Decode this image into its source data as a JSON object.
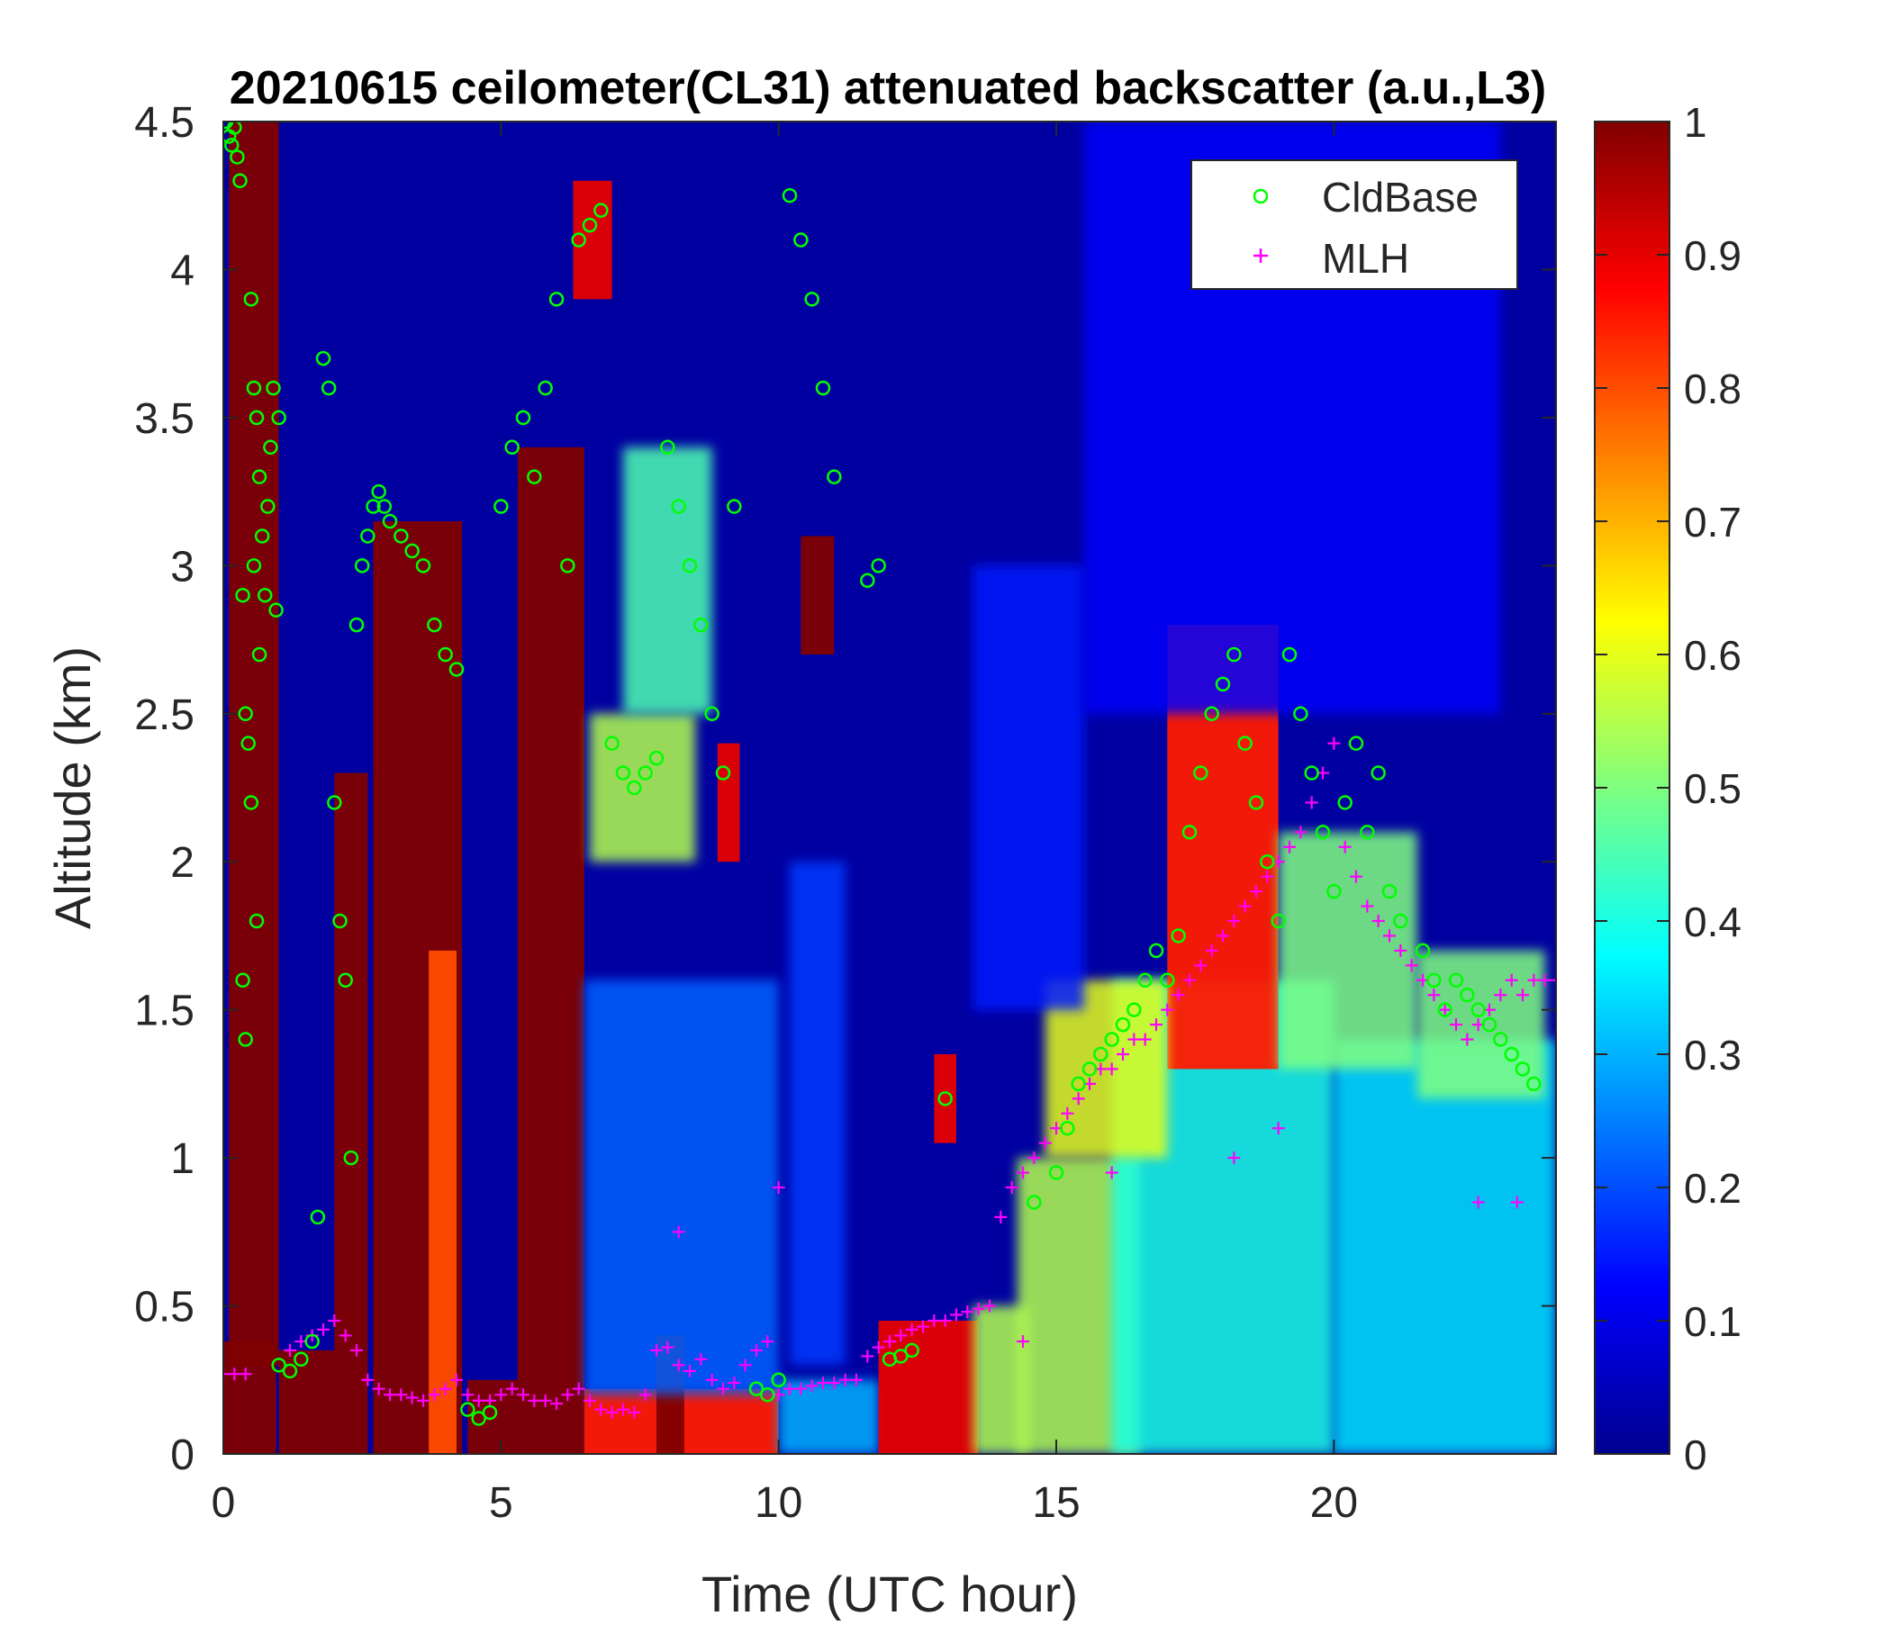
{
  "chart_data": {
    "type": "heatmap",
    "title": "20210615 ceilometer(CL31) attenuated backscatter (a.u.,L3)",
    "xlabel": "Time (UTC hour)",
    "ylabel": "Altitude (km)",
    "xlim": [
      0,
      24
    ],
    "ylim": [
      0,
      4.5
    ],
    "x_ticks": [
      "0",
      "5",
      "10",
      "15",
      "20"
    ],
    "x_tick_values": [
      0,
      5,
      10,
      15,
      20
    ],
    "y_ticks": [
      "0",
      "0.5",
      "1",
      "1.5",
      "2",
      "2.5",
      "3",
      "3.5",
      "4",
      "4.5"
    ],
    "y_tick_values": [
      0,
      0.5,
      1,
      1.5,
      2,
      2.5,
      3,
      3.5,
      4,
      4.5
    ],
    "colorbar": {
      "colormap": "jet",
      "clim": [
        0,
        1
      ],
      "ticks": [
        "0",
        "0.1",
        "0.2",
        "0.3",
        "0.4",
        "0.5",
        "0.6",
        "0.7",
        "0.8",
        "0.9",
        "1"
      ],
      "tick_values": [
        0,
        0.1,
        0.2,
        0.3,
        0.4,
        0.5,
        0.6,
        0.7,
        0.8,
        0.9,
        1
      ]
    },
    "background_value": 0.02,
    "grid": false,
    "legend": {
      "placement": "top-right",
      "entries": [
        {
          "label": "CldBase",
          "marker": "circle",
          "color": "#00ff00"
        },
        {
          "label": "MLH",
          "marker": "plus",
          "color": "#ff00ff"
        }
      ]
    },
    "features": [
      {
        "x": [
          0,
          0.95
        ],
        "y": [
          0,
          0.38
        ],
        "value": 1.0
      },
      {
        "x": [
          0.1,
          1.0
        ],
        "y": [
          0.3,
          4.5
        ],
        "value": 1.0
      },
      {
        "x": [
          1.0,
          2.0
        ],
        "y": [
          0,
          0.35
        ],
        "value": 1.0
      },
      {
        "x": [
          2.0,
          2.6
        ],
        "y": [
          0,
          2.3
        ],
        "value": 1.0
      },
      {
        "x": [
          2.7,
          4.3
        ],
        "y": [
          0,
          3.15
        ],
        "value": 1.0
      },
      {
        "x": [
          3.7,
          4.2
        ],
        "y": [
          0,
          1.7
        ],
        "value": 0.8
      },
      {
        "x": [
          4.4,
          5.3
        ],
        "y": [
          0,
          0.25
        ],
        "value": 1.0
      },
      {
        "x": [
          5.3,
          6.5
        ],
        "y": [
          0,
          3.4
        ],
        "value": 1.0
      },
      {
        "x": [
          6.5,
          10.0
        ],
        "y": [
          0,
          0.22
        ],
        "value": 0.85
      },
      {
        "x": [
          7.8,
          8.3
        ],
        "y": [
          0,
          0.4
        ],
        "value": 1.0
      },
      {
        "x": [
          6.6,
          8.5
        ],
        "y": [
          2.0,
          2.5
        ],
        "value": 0.55
      },
      {
        "x": [
          6.5,
          10.0
        ],
        "y": [
          0.2,
          1.6
        ],
        "value": 0.22
      },
      {
        "x": [
          7.2,
          8.8
        ],
        "y": [
          2.5,
          3.4
        ],
        "value": 0.45
      },
      {
        "x": [
          6.3,
          7.0
        ],
        "y": [
          3.9,
          4.3
        ],
        "value": 0.9
      },
      {
        "x": [
          8.9,
          9.3
        ],
        "y": [
          2.0,
          2.4
        ],
        "value": 0.9
      },
      {
        "x": [
          10.4,
          11.0
        ],
        "y": [
          2.7,
          3.1
        ],
        "value": 1.0
      },
      {
        "x": [
          10.0,
          11.8
        ],
        "y": [
          0,
          0.25
        ],
        "value": 0.3
      },
      {
        "x": [
          11.8,
          13.6
        ],
        "y": [
          0,
          0.45
        ],
        "value": 0.9
      },
      {
        "x": [
          13.5,
          14.5
        ],
        "y": [
          0,
          0.5
        ],
        "value": 0.55
      },
      {
        "x": [
          14.3,
          16.5
        ],
        "y": [
          0,
          1.0
        ],
        "value": 0.55
      },
      {
        "x": [
          16.0,
          20.0
        ],
        "y": [
          0,
          1.6
        ],
        "value": 0.4
      },
      {
        "x": [
          20.0,
          24.0
        ],
        "y": [
          0,
          1.4
        ],
        "value": 0.35
      },
      {
        "x": [
          12.8,
          13.2
        ],
        "y": [
          1.05,
          1.35
        ],
        "value": 0.9
      },
      {
        "x": [
          10.2,
          11.2
        ],
        "y": [
          0.3,
          2.0
        ],
        "value": 0.18
      },
      {
        "x": [
          17.0,
          19.0
        ],
        "y": [
          1.3,
          2.8
        ],
        "value": 0.85
      },
      {
        "x": [
          19.0,
          21.5
        ],
        "y": [
          1.3,
          2.1
        ],
        "value": 0.5
      },
      {
        "x": [
          21.5,
          23.8
        ],
        "y": [
          1.2,
          1.7
        ],
        "value": 0.5
      },
      {
        "x": [
          14.8,
          17.0
        ],
        "y": [
          1.0,
          1.6
        ],
        "value": 0.6
      },
      {
        "x": [
          13.5,
          15.5
        ],
        "y": [
          1.5,
          3.0
        ],
        "value": 0.15
      },
      {
        "x": [
          15.5,
          23.0
        ],
        "y": [
          2.5,
          4.5
        ],
        "value": 0.12
      }
    ],
    "series": [
      {
        "name": "CldBase",
        "x": [
          0.05,
          0.1,
          0.15,
          0.2,
          0.25,
          0.3,
          0.35,
          0.4,
          0.5,
          0.55,
          0.6,
          0.65,
          0.7,
          0.75,
          0.8,
          0.85,
          0.9,
          0.95,
          1.0,
          0.4,
          0.5,
          0.6,
          0.45,
          0.55,
          0.35,
          0.65,
          1.0,
          1.2,
          1.4,
          1.6,
          1.7,
          1.8,
          1.9,
          2.0,
          2.1,
          2.2,
          2.3,
          2.4,
          2.5,
          2.6,
          2.7,
          2.8,
          2.9,
          3.0,
          3.2,
          3.4,
          3.6,
          3.8,
          4.0,
          4.2,
          4.4,
          4.6,
          4.8,
          5.0,
          5.2,
          5.4,
          5.6,
          5.8,
          6.0,
          6.2,
          6.4,
          6.6,
          6.8,
          7.0,
          7.2,
          7.4,
          7.6,
          7.8,
          8.0,
          8.2,
          8.4,
          8.6,
          8.8,
          9.0,
          9.2,
          9.6,
          9.8,
          10.0,
          10.2,
          10.4,
          10.6,
          10.8,
          11.0,
          11.6,
          11.8,
          12.0,
          12.2,
          12.4,
          13.0,
          14.6,
          15.0,
          15.2,
          15.4,
          15.6,
          15.8,
          16.0,
          16.2,
          16.4,
          16.6,
          16.8,
          17.0,
          17.2,
          17.4,
          17.6,
          17.8,
          18.0,
          18.2,
          18.4,
          18.6,
          18.8,
          19.0,
          19.2,
          19.4,
          19.6,
          19.8,
          20.0,
          20.2,
          20.4,
          20.6,
          20.8,
          21.0,
          21.2,
          21.6,
          21.8,
          22.0,
          22.2,
          22.4,
          22.6,
          22.8,
          23.0,
          23.2,
          23.4,
          23.6
        ],
        "y": [
          4.5,
          4.45,
          4.42,
          4.48,
          4.38,
          4.3,
          2.9,
          2.5,
          3.9,
          3.6,
          3.5,
          3.3,
          3.1,
          2.9,
          3.2,
          3.4,
          3.6,
          2.85,
          3.5,
          1.4,
          2.2,
          1.8,
          2.4,
          3.0,
          1.6,
          2.7,
          0.3,
          0.28,
          0.32,
          0.38,
          0.8,
          3.7,
          3.6,
          2.2,
          1.8,
          1.6,
          1.0,
          2.8,
          3.0,
          3.1,
          3.2,
          3.25,
          3.2,
          3.15,
          3.1,
          3.05,
          3.0,
          2.8,
          2.7,
          2.65,
          0.15,
          0.12,
          0.14,
          3.2,
          3.4,
          3.5,
          3.3,
          3.6,
          3.9,
          3.0,
          4.1,
          4.15,
          4.2,
          2.4,
          2.3,
          2.25,
          2.3,
          2.35,
          3.4,
          3.2,
          3.0,
          2.8,
          2.5,
          2.3,
          3.2,
          0.22,
          0.2,
          0.25,
          4.25,
          4.1,
          3.9,
          3.6,
          3.3,
          2.95,
          3.0,
          0.32,
          0.33,
          0.35,
          1.2,
          0.85,
          0.95,
          1.1,
          1.25,
          1.3,
          1.35,
          1.4,
          1.45,
          1.5,
          1.6,
          1.7,
          1.6,
          1.75,
          2.1,
          2.3,
          2.5,
          2.6,
          2.7,
          2.4,
          2.2,
          2.0,
          1.8,
          2.7,
          2.5,
          2.3,
          2.1,
          1.9,
          2.2,
          2.4,
          2.1,
          2.3,
          1.9,
          1.8,
          1.7,
          1.6,
          1.5,
          1.6,
          1.55,
          1.5,
          1.45,
          1.4,
          1.35,
          1.3,
          1.25
        ]
      },
      {
        "name": "MLH",
        "x": [
          0.0,
          0.2,
          0.4,
          1.2,
          1.4,
          1.6,
          1.8,
          2.0,
          2.2,
          2.4,
          2.6,
          2.8,
          3.0,
          3.2,
          3.4,
          3.6,
          3.8,
          4.0,
          4.2,
          4.4,
          4.6,
          4.8,
          5.0,
          5.2,
          5.4,
          5.6,
          5.8,
          6.0,
          6.2,
          6.4,
          6.6,
          6.8,
          7.0,
          7.2,
          7.4,
          7.6,
          7.8,
          8.0,
          8.2,
          8.4,
          8.6,
          8.8,
          9.0,
          9.2,
          9.4,
          9.6,
          9.8,
          10.0,
          10.2,
          10.4,
          10.6,
          10.8,
          11.0,
          11.2,
          11.4,
          11.6,
          11.8,
          12.0,
          12.2,
          12.4,
          12.6,
          12.8,
          13.0,
          13.2,
          13.4,
          13.6,
          13.8,
          14.0,
          14.2,
          14.4,
          14.6,
          14.8,
          15.0,
          15.2,
          15.4,
          15.6,
          15.8,
          16.0,
          16.2,
          16.4,
          16.6,
          16.8,
          17.0,
          17.2,
          17.4,
          17.6,
          17.8,
          18.0,
          18.2,
          18.4,
          18.6,
          18.8,
          19.0,
          19.2,
          19.4,
          19.6,
          19.8,
          20.0,
          20.2,
          20.4,
          20.6,
          20.8,
          21.0,
          21.2,
          21.4,
          21.6,
          21.8,
          22.0,
          22.2,
          22.4,
          22.6,
          22.8,
          23.0,
          23.2,
          23.4,
          23.6,
          23.8,
          24.0,
          8.2,
          10.0,
          14.4,
          16.0,
          18.2,
          19.0,
          22.6,
          23.3
        ],
        "y": [
          0.27,
          0.27,
          0.27,
          0.35,
          0.38,
          0.4,
          0.42,
          0.45,
          0.4,
          0.35,
          0.25,
          0.22,
          0.2,
          0.2,
          0.19,
          0.18,
          0.2,
          0.22,
          0.25,
          0.2,
          0.18,
          0.18,
          0.2,
          0.22,
          0.2,
          0.18,
          0.18,
          0.17,
          0.2,
          0.22,
          0.18,
          0.15,
          0.14,
          0.15,
          0.14,
          0.2,
          0.35,
          0.36,
          0.3,
          0.28,
          0.32,
          0.25,
          0.22,
          0.24,
          0.3,
          0.35,
          0.38,
          0.2,
          0.22,
          0.22,
          0.23,
          0.24,
          0.24,
          0.25,
          0.25,
          0.33,
          0.36,
          0.38,
          0.4,
          0.42,
          0.43,
          0.45,
          0.45,
          0.47,
          0.48,
          0.49,
          0.5,
          0.8,
          0.9,
          0.95,
          1.0,
          1.05,
          1.1,
          1.15,
          1.2,
          1.25,
          1.3,
          1.3,
          1.35,
          1.4,
          1.4,
          1.45,
          1.5,
          1.55,
          1.6,
          1.65,
          1.7,
          1.75,
          1.8,
          1.85,
          1.9,
          1.95,
          2.0,
          2.05,
          2.1,
          2.2,
          2.3,
          2.4,
          2.05,
          1.95,
          1.85,
          1.8,
          1.75,
          1.7,
          1.65,
          1.6,
          1.55,
          1.5,
          1.45,
          1.4,
          1.45,
          1.5,
          1.55,
          1.6,
          1.55,
          1.6,
          1.6,
          1.6,
          0.75,
          0.9,
          0.38,
          0.95,
          1.0,
          1.1,
          0.85,
          0.85
        ]
      }
    ]
  }
}
